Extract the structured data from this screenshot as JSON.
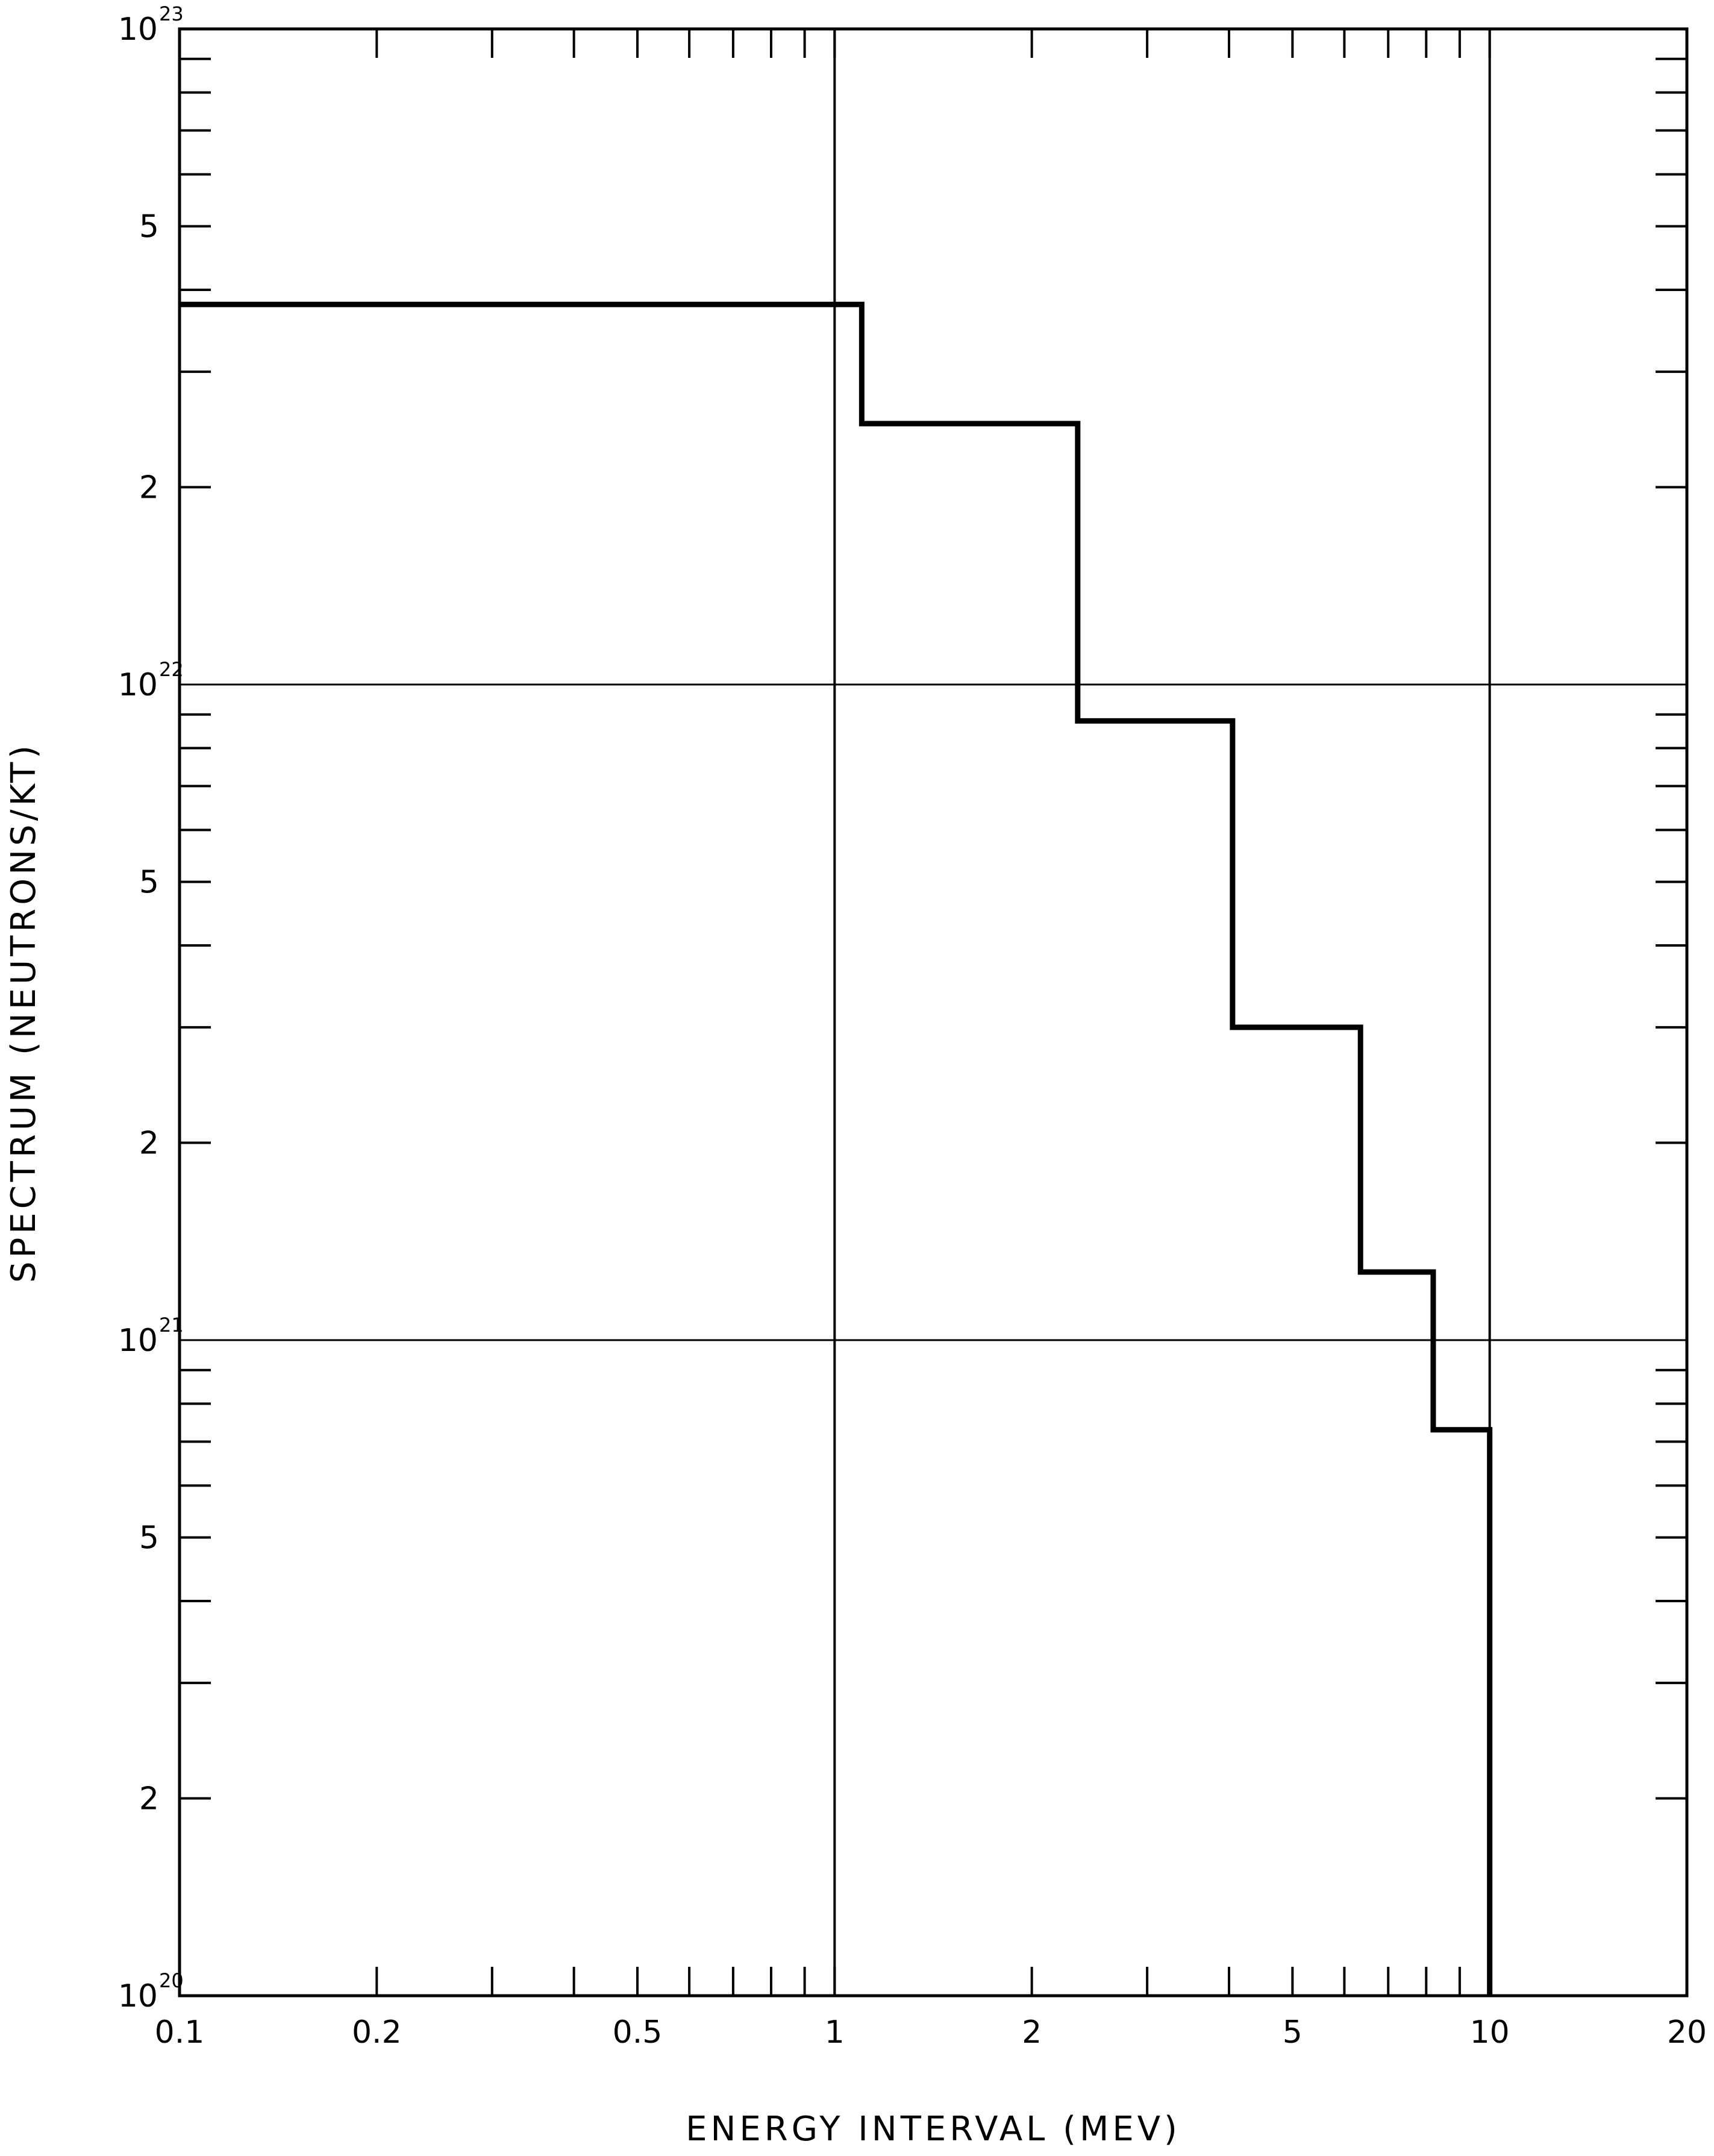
{
  "chart_data": {
    "type": "line",
    "step": true,
    "title": "",
    "xlabel": "ENERGY INTERVAL (MEV)",
    "ylabel": "SPECTRUM (NEUTRONS/KT)",
    "x_scale": "log",
    "y_scale": "log",
    "xlim": [
      0.1,
      20
    ],
    "ylim": [
      1e+20,
      1e+23
    ],
    "grid": "major decades only",
    "legend": "none",
    "x_tick_labels": [
      {
        "value": 0.1,
        "label": "0.1"
      },
      {
        "value": 0.2,
        "label": "0.2"
      },
      {
        "value": 0.5,
        "label": "0.5"
      },
      {
        "value": 1,
        "label": "1"
      },
      {
        "value": 2,
        "label": "2"
      },
      {
        "value": 5,
        "label": "5"
      },
      {
        "value": 10,
        "label": "10"
      },
      {
        "value": 20,
        "label": "20"
      }
    ],
    "y_tick_labels": [
      {
        "value": 1e+20,
        "base": "10",
        "exp": "20"
      },
      {
        "value": 2e+20,
        "label": "2"
      },
      {
        "value": 5e+20,
        "label": "5"
      },
      {
        "value": 1e+21,
        "base": "10",
        "exp": "21"
      },
      {
        "value": 2e+21,
        "label": "2"
      },
      {
        "value": 5e+21,
        "label": "5"
      },
      {
        "value": 1e+22,
        "base": "10",
        "exp": "22"
      },
      {
        "value": 2e+22,
        "label": "2"
      },
      {
        "value": 5e+22,
        "label": "5"
      },
      {
        "value": 1e+23,
        "base": "10",
        "exp": "23"
      }
    ],
    "series": [
      {
        "bins": [
          {
            "x0": 0.1,
            "x1": 1.1,
            "y": 3.8e+22
          },
          {
            "x0": 1.1,
            "x1": 2.35,
            "y": 2.5e+22
          },
          {
            "x0": 2.35,
            "x1": 4.05,
            "y": 8.8e+21
          },
          {
            "x0": 4.05,
            "x1": 6.35,
            "y": 3e+21
          },
          {
            "x0": 6.35,
            "x1": 8.2,
            "y": 1.27e+21
          },
          {
            "x0": 8.2,
            "x1": 10,
            "y": 7.3e+20
          }
        ]
      }
    ],
    "colors": {
      "line": "#000000",
      "background": "#ffffff"
    }
  }
}
